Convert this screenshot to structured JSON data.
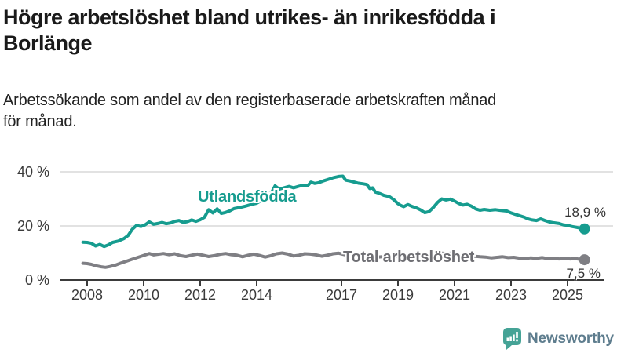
{
  "header": {
    "title_line1": "Högre arbetslöshet bland utrikes- än inrikesfödda i",
    "title_line2": "Borlänge",
    "subtitle_line1": "Arbetssökande som andel av den registerbaserade arbetskraften månad",
    "subtitle_line2": "för månad."
  },
  "footer": {
    "brand": "Newsworthy"
  },
  "colors": {
    "foreign_born_line": "#169c8f",
    "total_line": "#7f7f84",
    "total_label": "#6e6e73",
    "axis_text": "#3a3a3a",
    "grid_line": "#d9d9d9",
    "axis_line": "#3b3b3b",
    "brand_teal": "#45a396",
    "brand_text": "#5e7d8e"
  },
  "chart_data": {
    "type": "line",
    "title": "Högre arbetslöshet bland utrikes- än inrikesfödda i Borlänge",
    "subtitle": "Arbetssökande som andel av den registerbaserade arbetskraften månad för månad.",
    "unit": "%",
    "ylim": [
      0,
      40
    ],
    "x_range": [
      2007.85,
      2025.6
    ],
    "grid": "horizontal-only",
    "legend_position": "inline-labels",
    "y_ticks": [
      {
        "value": 0,
        "label": "0 %"
      },
      {
        "value": 20,
        "label": "20 %"
      },
      {
        "value": 40,
        "label": "40 %"
      }
    ],
    "x_ticks": [
      {
        "value": 2008,
        "label": "2008"
      },
      {
        "value": 2010,
        "label": "2010"
      },
      {
        "value": 2012,
        "label": "2012"
      },
      {
        "value": 2014,
        "label": "2014"
      },
      {
        "value": 2017,
        "label": "2017"
      },
      {
        "value": 2019,
        "label": "2019"
      },
      {
        "value": 2021,
        "label": "2021"
      },
      {
        "value": 2023,
        "label": "2023"
      },
      {
        "value": 2025,
        "label": "2025"
      }
    ],
    "series": [
      {
        "name": "Utlandsfödda",
        "color": "#169c8f",
        "label_color": "#169c8f",
        "end_value": 18.9,
        "end_label": "18,9 %",
        "points": [
          [
            2007.85,
            14.0
          ],
          [
            2008.0,
            13.9
          ],
          [
            2008.15,
            13.6
          ],
          [
            2008.3,
            12.6
          ],
          [
            2008.45,
            13.2
          ],
          [
            2008.6,
            12.4
          ],
          [
            2008.75,
            13.0
          ],
          [
            2008.9,
            13.9
          ],
          [
            2009.1,
            14.4
          ],
          [
            2009.3,
            15.3
          ],
          [
            2009.45,
            16.5
          ],
          [
            2009.6,
            18.8
          ],
          [
            2009.75,
            20.2
          ],
          [
            2009.9,
            19.8
          ],
          [
            2010.05,
            20.4
          ],
          [
            2010.2,
            21.5
          ],
          [
            2010.35,
            20.6
          ],
          [
            2010.5,
            20.9
          ],
          [
            2010.65,
            21.3
          ],
          [
            2010.8,
            20.8
          ],
          [
            2010.95,
            21.1
          ],
          [
            2011.1,
            21.7
          ],
          [
            2011.25,
            22.0
          ],
          [
            2011.4,
            21.3
          ],
          [
            2011.55,
            21.6
          ],
          [
            2011.7,
            22.2
          ],
          [
            2011.85,
            21.7
          ],
          [
            2012.0,
            22.3
          ],
          [
            2012.15,
            23.2
          ],
          [
            2012.3,
            26.0
          ],
          [
            2012.45,
            24.8
          ],
          [
            2012.6,
            26.3
          ],
          [
            2012.75,
            24.6
          ],
          [
            2012.9,
            25.0
          ],
          [
            2013.05,
            25.6
          ],
          [
            2013.2,
            26.4
          ],
          [
            2013.4,
            26.8
          ],
          [
            2013.6,
            27.3
          ],
          [
            2013.8,
            27.9
          ],
          [
            2014.0,
            28.4
          ],
          [
            2014.2,
            29.6
          ],
          [
            2014.4,
            31.4
          ],
          [
            2014.55,
            32.8
          ],
          [
            2014.65,
            34.8
          ],
          [
            2014.8,
            33.6
          ],
          [
            2015.0,
            34.2
          ],
          [
            2015.15,
            34.6
          ],
          [
            2015.3,
            34.1
          ],
          [
            2015.5,
            34.7
          ],
          [
            2015.65,
            35.0
          ],
          [
            2015.8,
            34.8
          ],
          [
            2015.92,
            36.2
          ],
          [
            2016.05,
            35.7
          ],
          [
            2016.2,
            36.0
          ],
          [
            2016.35,
            36.6
          ],
          [
            2016.5,
            37.1
          ],
          [
            2016.7,
            37.8
          ],
          [
            2016.9,
            38.3
          ],
          [
            2017.05,
            38.4
          ],
          [
            2017.15,
            36.9
          ],
          [
            2017.3,
            36.6
          ],
          [
            2017.45,
            36.2
          ],
          [
            2017.6,
            35.8
          ],
          [
            2017.75,
            35.6
          ],
          [
            2017.9,
            35.3
          ],
          [
            2018.0,
            33.8
          ],
          [
            2018.1,
            34.1
          ],
          [
            2018.2,
            32.5
          ],
          [
            2018.35,
            32.0
          ],
          [
            2018.5,
            31.3
          ],
          [
            2018.7,
            30.8
          ],
          [
            2018.85,
            29.7
          ],
          [
            2019.0,
            28.2
          ],
          [
            2019.1,
            27.6
          ],
          [
            2019.2,
            27.1
          ],
          [
            2019.35,
            27.9
          ],
          [
            2019.5,
            27.2
          ],
          [
            2019.65,
            26.7
          ],
          [
            2019.8,
            25.9
          ],
          [
            2019.95,
            24.9
          ],
          [
            2020.1,
            25.3
          ],
          [
            2020.25,
            26.8
          ],
          [
            2020.4,
            28.7
          ],
          [
            2020.55,
            30.0
          ],
          [
            2020.7,
            29.6
          ],
          [
            2020.85,
            29.9
          ],
          [
            2021.0,
            29.2
          ],
          [
            2021.15,
            28.3
          ],
          [
            2021.3,
            27.7
          ],
          [
            2021.45,
            28.0
          ],
          [
            2021.6,
            27.3
          ],
          [
            2021.75,
            26.3
          ],
          [
            2021.9,
            25.8
          ],
          [
            2022.05,
            26.1
          ],
          [
            2022.25,
            25.8
          ],
          [
            2022.45,
            26.0
          ],
          [
            2022.65,
            25.7
          ],
          [
            2022.85,
            25.5
          ],
          [
            2023.0,
            24.8
          ],
          [
            2023.15,
            24.3
          ],
          [
            2023.3,
            23.8
          ],
          [
            2023.45,
            23.3
          ],
          [
            2023.6,
            22.6
          ],
          [
            2023.75,
            22.2
          ],
          [
            2023.9,
            22.0
          ],
          [
            2024.05,
            22.6
          ],
          [
            2024.2,
            22.0
          ],
          [
            2024.35,
            21.5
          ],
          [
            2024.5,
            21.2
          ],
          [
            2024.7,
            20.9
          ],
          [
            2024.85,
            20.4
          ],
          [
            2025.0,
            20.2
          ],
          [
            2025.15,
            19.8
          ],
          [
            2025.3,
            19.5
          ],
          [
            2025.45,
            19.2
          ],
          [
            2025.6,
            18.9
          ]
        ]
      },
      {
        "name": "Total arbetslöshet",
        "color": "#7f7f84",
        "label_color": "#6e6e73",
        "end_value": 7.5,
        "end_label": "7,5 %",
        "points": [
          [
            2007.85,
            6.2
          ],
          [
            2008.0,
            6.1
          ],
          [
            2008.15,
            5.8
          ],
          [
            2008.3,
            5.3
          ],
          [
            2008.5,
            4.9
          ],
          [
            2008.65,
            4.7
          ],
          [
            2008.8,
            5.0
          ],
          [
            2009.0,
            5.5
          ],
          [
            2009.2,
            6.3
          ],
          [
            2009.4,
            7.0
          ],
          [
            2009.6,
            7.7
          ],
          [
            2009.8,
            8.4
          ],
          [
            2010.0,
            9.1
          ],
          [
            2010.2,
            9.8
          ],
          [
            2010.35,
            9.3
          ],
          [
            2010.5,
            9.5
          ],
          [
            2010.7,
            9.8
          ],
          [
            2010.9,
            9.4
          ],
          [
            2011.1,
            9.7
          ],
          [
            2011.3,
            9.0
          ],
          [
            2011.5,
            8.7
          ],
          [
            2011.7,
            9.2
          ],
          [
            2011.9,
            9.6
          ],
          [
            2012.1,
            9.2
          ],
          [
            2012.3,
            8.7
          ],
          [
            2012.5,
            9.0
          ],
          [
            2012.7,
            9.5
          ],
          [
            2012.9,
            9.8
          ],
          [
            2013.1,
            9.4
          ],
          [
            2013.3,
            9.2
          ],
          [
            2013.5,
            8.6
          ],
          [
            2013.7,
            9.2
          ],
          [
            2013.9,
            9.6
          ],
          [
            2014.1,
            9.1
          ],
          [
            2014.3,
            8.5
          ],
          [
            2014.5,
            9.0
          ],
          [
            2014.7,
            9.7
          ],
          [
            2014.9,
            10.0
          ],
          [
            2015.1,
            9.6
          ],
          [
            2015.3,
            8.9
          ],
          [
            2015.5,
            9.2
          ],
          [
            2015.7,
            9.7
          ],
          [
            2015.9,
            9.6
          ],
          [
            2016.1,
            9.3
          ],
          [
            2016.3,
            8.8
          ],
          [
            2016.5,
            9.2
          ],
          [
            2016.7,
            9.7
          ],
          [
            2016.9,
            9.9
          ],
          [
            2017.1,
            9.4
          ],
          [
            2017.3,
            8.9
          ],
          [
            2017.5,
            9.1
          ],
          [
            2017.7,
            9.4
          ],
          [
            2017.9,
            9.2
          ],
          [
            2018.1,
            8.9
          ],
          [
            2018.3,
            8.5
          ],
          [
            2018.5,
            8.7
          ],
          [
            2018.7,
            9.0
          ],
          [
            2018.9,
            8.8
          ],
          [
            2019.1,
            8.6
          ],
          [
            2019.3,
            8.3
          ],
          [
            2019.5,
            8.5
          ],
          [
            2019.7,
            8.7
          ],
          [
            2019.9,
            8.4
          ],
          [
            2020.1,
            8.7
          ],
          [
            2020.3,
            9.6
          ],
          [
            2020.5,
            10.0
          ],
          [
            2020.7,
            9.8
          ],
          [
            2020.9,
            9.9
          ],
          [
            2021.1,
            9.6
          ],
          [
            2021.3,
            9.2
          ],
          [
            2021.5,
            8.9
          ],
          [
            2021.7,
            8.8
          ],
          [
            2021.9,
            8.6
          ],
          [
            2022.1,
            8.5
          ],
          [
            2022.3,
            8.2
          ],
          [
            2022.5,
            8.4
          ],
          [
            2022.7,
            8.6
          ],
          [
            2022.9,
            8.3
          ],
          [
            2023.1,
            8.4
          ],
          [
            2023.3,
            8.1
          ],
          [
            2023.5,
            7.9
          ],
          [
            2023.7,
            8.2
          ],
          [
            2023.9,
            8.0
          ],
          [
            2024.1,
            8.3
          ],
          [
            2024.3,
            7.9
          ],
          [
            2024.5,
            8.1
          ],
          [
            2024.7,
            7.8
          ],
          [
            2024.9,
            8.0
          ],
          [
            2025.1,
            7.8
          ],
          [
            2025.25,
            8.0
          ],
          [
            2025.4,
            7.7
          ],
          [
            2025.6,
            7.5
          ]
        ]
      }
    ]
  }
}
